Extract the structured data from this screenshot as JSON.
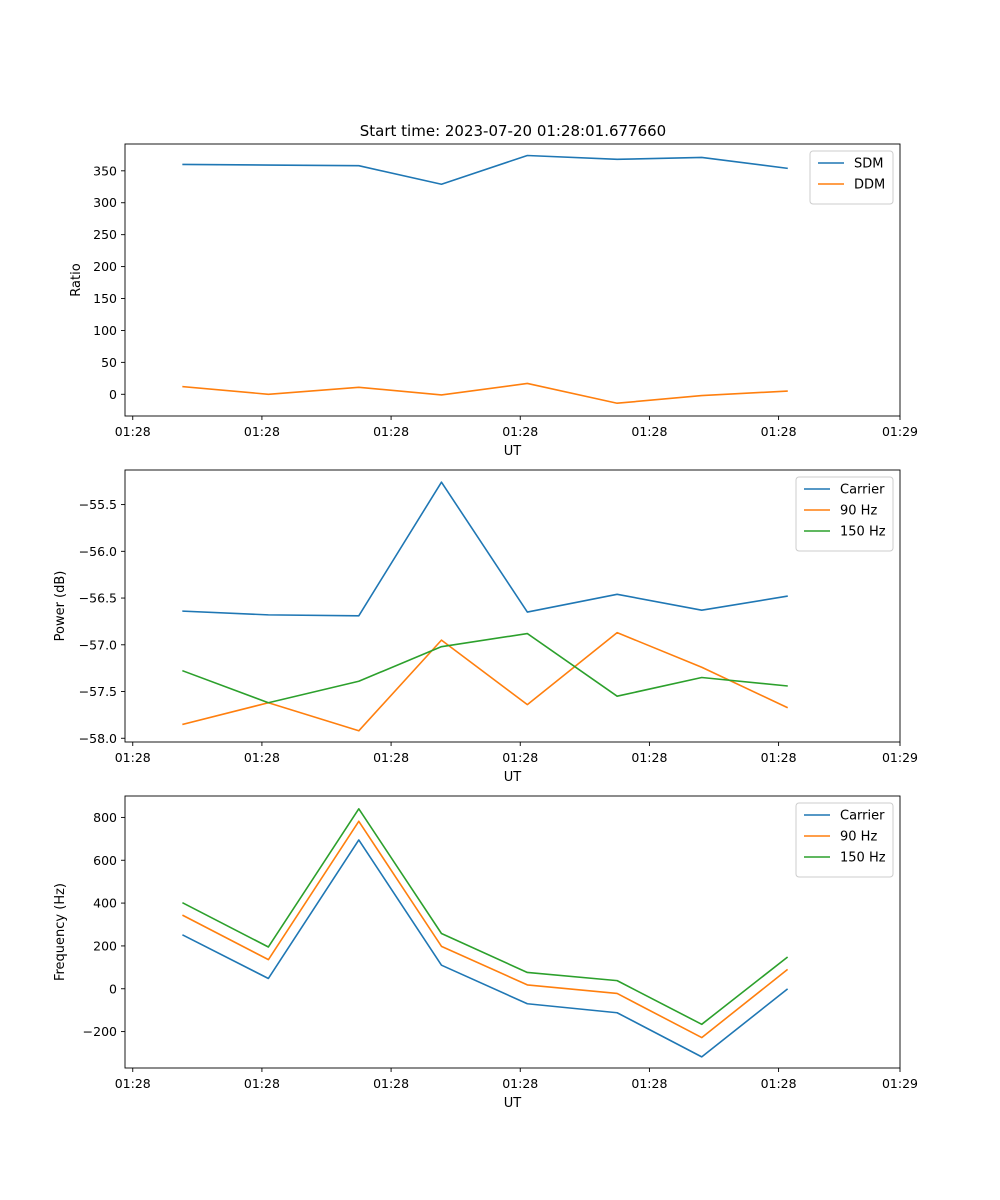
{
  "figure": {
    "title": "Start time: 2023-07-20 01:28:01.677660"
  },
  "colors": {
    "c0": "#1f77b4",
    "c1": "#ff7f0e",
    "c2": "#2ca02c",
    "axis": "#000000"
  },
  "chart_data": [
    {
      "type": "line",
      "title": "Start time: 2023-07-20 01:28:01.677660",
      "xlabel": "UT",
      "ylabel": "Ratio",
      "x": [
        0.9,
        2.22,
        3.62,
        4.9,
        6.23,
        7.62,
        8.93,
        10.25
      ],
      "xlim": [
        0,
        12
      ],
      "xticks": [
        0.12,
        2.12,
        4.12,
        6.12,
        8.12,
        10.12,
        12.0
      ],
      "xticklabels": [
        "01:28",
        "01:28",
        "01:28",
        "01:28",
        "01:28",
        "01:28",
        "01:29"
      ],
      "ylim": [
        -34,
        392
      ],
      "yticks": [
        0,
        50,
        100,
        150,
        200,
        250,
        300,
        350
      ],
      "yticklabels": [
        "0",
        "50",
        "100",
        "150",
        "200",
        "250",
        "300",
        "350"
      ],
      "legend_position": "top-right",
      "series": [
        {
          "name": "SDM",
          "color": "#1f77b4",
          "values": [
            360,
            359,
            358,
            329,
            374,
            368,
            371,
            354
          ]
        },
        {
          "name": "DDM",
          "color": "#ff7f0e",
          "values": [
            12,
            0,
            11,
            -1,
            17,
            -14,
            -2,
            5
          ]
        }
      ]
    },
    {
      "type": "line",
      "title": "",
      "xlabel": "UT",
      "ylabel": "Power (dB)",
      "x": [
        0.9,
        2.22,
        3.62,
        4.9,
        6.23,
        7.62,
        8.93,
        10.25
      ],
      "xlim": [
        0,
        12
      ],
      "xticks": [
        0.12,
        2.12,
        4.12,
        6.12,
        8.12,
        10.12,
        12.0
      ],
      "xticklabels": [
        "01:28",
        "01:28",
        "01:28",
        "01:28",
        "01:28",
        "01:28",
        "01:29"
      ],
      "ylim": [
        -58.04,
        -55.13
      ],
      "yticks": [
        -58.0,
        -57.5,
        -57.0,
        -56.5,
        -56.0,
        -55.5
      ],
      "yticklabels": [
        "−58.0",
        "−57.5",
        "−57.0",
        "−56.5",
        "−56.0",
        "−55.5"
      ],
      "legend_position": "top-right",
      "series": [
        {
          "name": "Carrier",
          "color": "#1f77b4",
          "values": [
            -56.64,
            -56.68,
            -56.69,
            -55.26,
            -56.65,
            -56.46,
            -56.63,
            -56.48
          ]
        },
        {
          "name": "90 Hz",
          "color": "#ff7f0e",
          "values": [
            -57.85,
            -57.62,
            -57.92,
            -56.95,
            -57.64,
            -56.87,
            -57.24,
            -57.67
          ]
        },
        {
          "name": "150 Hz",
          "color": "#2ca02c",
          "values": [
            -57.28,
            -57.62,
            -57.39,
            -57.02,
            -56.88,
            -57.55,
            -57.35,
            -57.44
          ]
        }
      ]
    },
    {
      "type": "line",
      "title": "",
      "xlabel": "UT",
      "ylabel": "Frequency (Hz)",
      "x": [
        0.9,
        2.22,
        3.62,
        4.9,
        6.23,
        7.62,
        8.93,
        10.25
      ],
      "xlim": [
        0,
        12
      ],
      "xticks": [
        0.12,
        2.12,
        4.12,
        6.12,
        8.12,
        10.12,
        12.0
      ],
      "xticklabels": [
        "01:28",
        "01:28",
        "01:28",
        "01:28",
        "01:28",
        "01:28",
        "01:29"
      ],
      "ylim": [
        -370,
        900
      ],
      "yticks": [
        -200,
        0,
        200,
        400,
        600,
        800
      ],
      "yticklabels": [
        "−200",
        "0",
        "200",
        "400",
        "600",
        "800"
      ],
      "legend_position": "top-right",
      "series": [
        {
          "name": "Carrier",
          "color": "#1f77b4",
          "values": [
            250,
            48,
            695,
            110,
            -70,
            -112,
            -318,
            -3
          ]
        },
        {
          "name": "90 Hz",
          "color": "#ff7f0e",
          "values": [
            342,
            136,
            782,
            198,
            18,
            -22,
            -228,
            88
          ]
        },
        {
          "name": "150 Hz",
          "color": "#2ca02c",
          "values": [
            400,
            195,
            840,
            258,
            76,
            38,
            -166,
            146
          ]
        }
      ]
    }
  ]
}
